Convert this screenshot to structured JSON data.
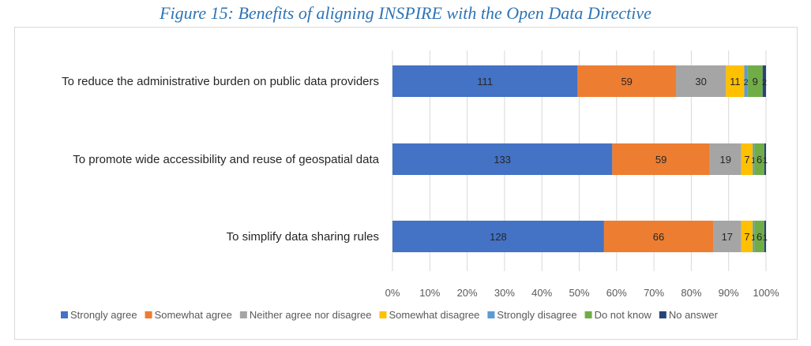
{
  "caption": "Figure 15: Benefits of aligning INSPIRE with the Open Data Directive",
  "chart_data": {
    "type": "bar",
    "stacked": "percent",
    "orientation": "horizontal",
    "title": "",
    "categories": [
      "To reduce the administrative burden on public data providers",
      "To promote wide accessibility and reuse of geospatial data",
      "To simplify data sharing rules"
    ],
    "series": [
      {
        "name": "Strongly agree",
        "color": "#4472c4",
        "labelColor": "#262626",
        "values": [
          111,
          133,
          128
        ]
      },
      {
        "name": "Somewhat agree",
        "color": "#ed7d31",
        "labelColor": "#262626",
        "values": [
          59,
          59,
          66
        ]
      },
      {
        "name": "Neither agree nor disagree",
        "color": "#a5a5a5",
        "labelColor": "#262626",
        "values": [
          30,
          19,
          17
        ]
      },
      {
        "name": "Somewhat disagree",
        "color": "#ffc000",
        "labelColor": "#262626",
        "values": [
          11,
          7,
          7
        ]
      },
      {
        "name": "Strongly disagree",
        "color": "#5b9bd5",
        "labelColor": "#262626",
        "values": [
          2,
          1,
          1
        ]
      },
      {
        "name": "Do not know",
        "color": "#70ad47",
        "labelColor": "#262626",
        "values": [
          9,
          6,
          6
        ]
      },
      {
        "name": "No answer",
        "color": "#264478",
        "labelColor": "#262626",
        "values": [
          2,
          1,
          1
        ]
      }
    ],
    "xlim": [
      0,
      100
    ],
    "xticks": [
      "0%",
      "10%",
      "20%",
      "30%",
      "40%",
      "50%",
      "60%",
      "70%",
      "80%",
      "90%",
      "100%"
    ],
    "grid": true,
    "legend": "bottom"
  }
}
